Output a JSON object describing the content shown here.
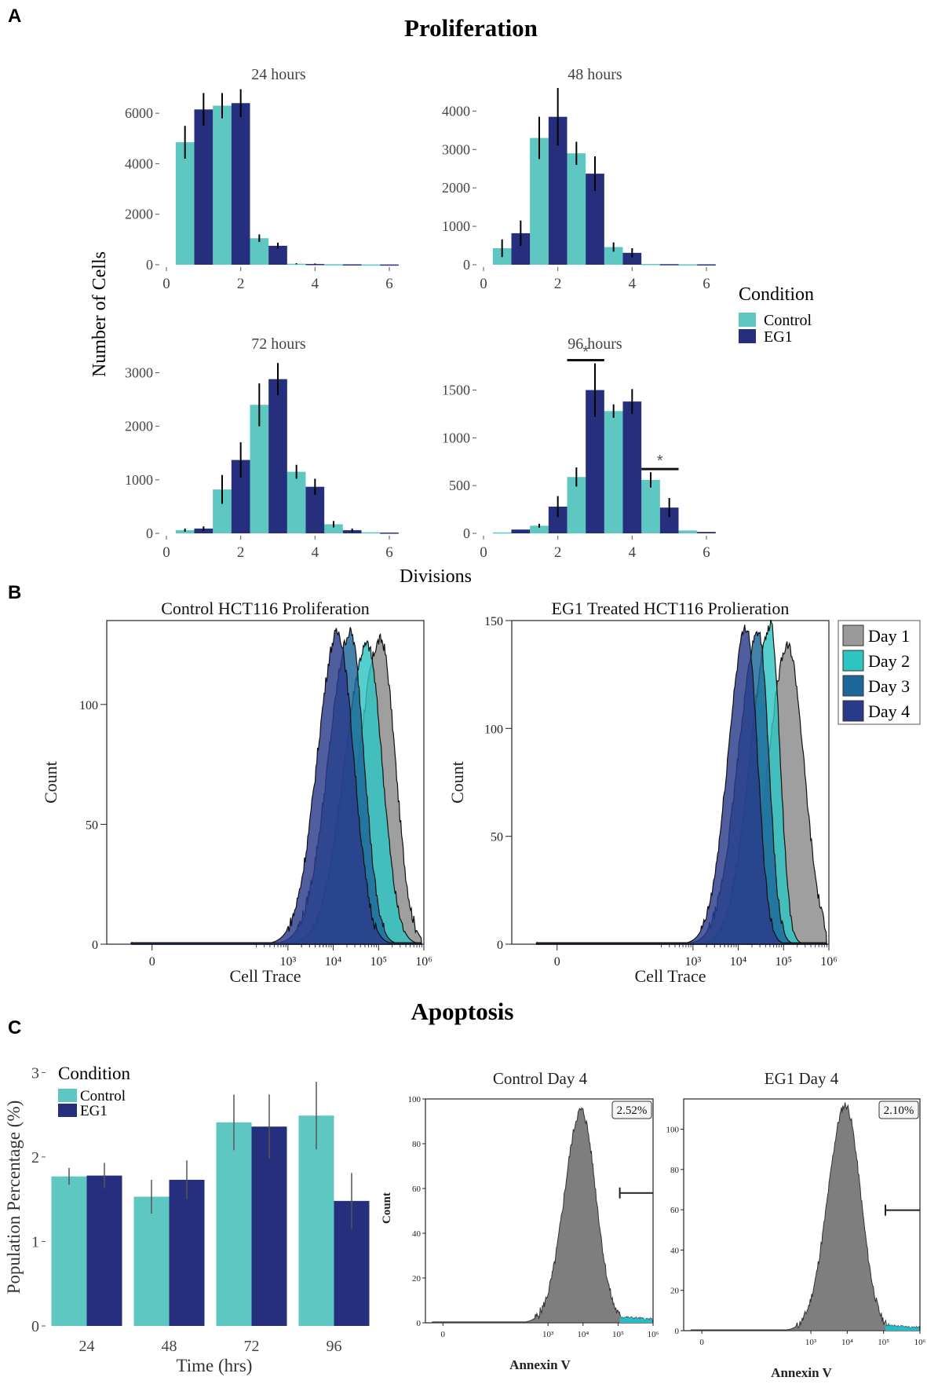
{
  "colors": {
    "control": "#5ec7c1",
    "eg1": "#262f7e",
    "day1": "#9a9a9a",
    "day2": "#2ec4c2",
    "day3": "#1c6699",
    "day4": "#2a3a8a",
    "annexin_fill": "#7e7e7e",
    "annexin_pos": "#27bcc7"
  },
  "panel_letters": [
    "A",
    "B",
    "C"
  ],
  "section_titles": {
    "proliferation": "Proliferation",
    "apoptosis": "Apoptosis"
  },
  "panelA": {
    "shared_ylabel": "Number of Cells",
    "shared_xlabel": "Divisions",
    "legend_title": "Condition",
    "legend_items": [
      "Control",
      "EG1"
    ],
    "significance_marker": "*"
  },
  "panelB": {
    "legend_items": [
      "Day 1",
      "Day 2",
      "Day 3",
      "Day 4"
    ]
  },
  "panelC": {
    "legend_title": "Condition",
    "legend_items": [
      "Control",
      "EG1"
    ]
  },
  "chart_data": [
    {
      "id": "a24",
      "type": "bar",
      "title": "24 hours",
      "x": [
        0,
        1,
        2,
        3,
        4,
        5,
        6
      ],
      "xticks": [
        "0",
        "2",
        "4",
        "6"
      ],
      "ylim": [
        0,
        7000
      ],
      "yticks": [
        0,
        2000,
        4000,
        6000
      ],
      "series": [
        {
          "name": "Control",
          "x": [
            0.5,
            1.5,
            2.5,
            3.5,
            4.5,
            5.5
          ],
          "values": [
            4850,
            6300,
            1050,
            40,
            20,
            10
          ],
          "err": [
            650,
            500,
            150,
            20,
            15,
            10
          ]
        },
        {
          "name": "EG1",
          "x": [
            1.0,
            2.0,
            3.0,
            4.0,
            5.0,
            6.0
          ],
          "values": [
            6150,
            6400,
            750,
            30,
            15,
            10
          ],
          "err": [
            650,
            550,
            120,
            20,
            15,
            10
          ]
        }
      ]
    },
    {
      "id": "a48",
      "type": "bar",
      "title": "48 hours",
      "x": [
        0,
        1,
        2,
        3,
        4,
        5,
        6
      ],
      "xticks": [
        "0",
        "2",
        "4",
        "6"
      ],
      "ylim": [
        0,
        4600
      ],
      "yticks": [
        0,
        1000,
        2000,
        3000,
        4000
      ],
      "series": [
        {
          "name": "Control",
          "x": [
            0.5,
            1.5,
            2.5,
            3.5,
            4.5,
            5.5
          ],
          "values": [
            430,
            3300,
            2900,
            460,
            20,
            10
          ],
          "err": [
            230,
            550,
            300,
            120,
            15,
            10
          ]
        },
        {
          "name": "EG1",
          "x": [
            1.0,
            2.0,
            3.0,
            4.0,
            5.0,
            6.0
          ],
          "values": [
            820,
            3850,
            2370,
            310,
            15,
            10
          ],
          "err": [
            330,
            750,
            450,
            120,
            15,
            10
          ]
        }
      ]
    },
    {
      "id": "a72",
      "type": "bar",
      "title": "72 hours",
      "x": [
        0,
        1,
        2,
        3,
        4,
        5,
        6
      ],
      "xticks": [
        "0",
        "2",
        "4",
        "6"
      ],
      "ylim": [
        0,
        3300
      ],
      "yticks": [
        0,
        1000,
        2000,
        3000
      ],
      "series": [
        {
          "name": "Control",
          "x": [
            0.5,
            1.5,
            2.5,
            3.5,
            4.5,
            5.5
          ],
          "values": [
            60,
            820,
            2400,
            1150,
            170,
            20
          ],
          "err": [
            30,
            270,
            400,
            130,
            60,
            15
          ]
        },
        {
          "name": "EG1",
          "x": [
            1.0,
            2.0,
            3.0,
            4.0,
            5.0,
            6.0
          ],
          "values": [
            90,
            1370,
            2880,
            870,
            60,
            15
          ],
          "err": [
            40,
            330,
            300,
            150,
            30,
            10
          ]
        }
      ]
    },
    {
      "id": "a96",
      "type": "bar",
      "title": "96 hours",
      "x": [
        0,
        1,
        2,
        3,
        4,
        5,
        6
      ],
      "xticks": [
        "0",
        "2",
        "4",
        "6"
      ],
      "ylim": [
        0,
        1850
      ],
      "yticks": [
        0,
        500,
        1000,
        1500
      ],
      "series": [
        {
          "name": "Control",
          "x": [
            0.5,
            1.5,
            2.5,
            3.5,
            4.5,
            5.5
          ],
          "values": [
            10,
            80,
            590,
            1280,
            560,
            30
          ],
          "err": [
            8,
            20,
            100,
            70,
            80,
            15
          ]
        },
        {
          "name": "EG1",
          "x": [
            1.0,
            2.0,
            3.0,
            4.0,
            5.0,
            6.0
          ],
          "values": [
            40,
            280,
            1500,
            1380,
            270,
            15
          ],
          "err": [
            15,
            110,
            280,
            130,
            100,
            10
          ]
        }
      ],
      "significance": [
        {
          "x": [
            2.5,
            3.0
          ]
        },
        {
          "x": [
            4.5,
            5.0
          ]
        }
      ]
    },
    {
      "id": "b_control",
      "type": "area",
      "title": "Control HCT116 Proliferation",
      "xlabel": "Cell Trace",
      "ylabel": "Count",
      "xscale": "log",
      "xlim": [
        -1,
        6
      ],
      "ylim": [
        0,
        135
      ],
      "yticks": [
        0,
        50,
        100
      ],
      "xticks": [
        {
          "value": 0,
          "label": "0"
        },
        {
          "value": 3,
          "label": "10³"
        },
        {
          "value": 4,
          "label": "10⁴"
        },
        {
          "value": 5,
          "label": "10⁵"
        },
        {
          "value": 6,
          "label": "10⁶"
        }
      ],
      "series": [
        {
          "name": "Day 1",
          "peak_log10": 5.05,
          "sigma_left": 0.5,
          "sigma_right": 0.32,
          "peak_count": 127
        },
        {
          "name": "Day 2",
          "peak_log10": 4.75,
          "sigma_left": 0.5,
          "sigma_right": 0.33,
          "peak_count": 125
        },
        {
          "name": "Day 3",
          "peak_log10": 4.38,
          "sigma_left": 0.48,
          "sigma_right": 0.3,
          "peak_count": 130
        },
        {
          "name": "Day 4",
          "peak_log10": 4.1,
          "sigma_left": 0.45,
          "sigma_right": 0.35,
          "peak_count": 130
        }
      ]
    },
    {
      "id": "b_eg1",
      "type": "area",
      "title": "EG1 Treated HCT116 Prolieration",
      "xlabel": "Cell Trace",
      "ylabel": "Count",
      "xscale": "log",
      "xlim": [
        -1,
        6
      ],
      "ylim": [
        0,
        150
      ],
      "yticks": [
        0,
        50,
        100,
        150
      ],
      "xticks": [
        {
          "value": 0,
          "label": "0"
        },
        {
          "value": 3,
          "label": "10³"
        },
        {
          "value": 4,
          "label": "10⁴"
        },
        {
          "value": 5,
          "label": "10⁵"
        },
        {
          "value": 6,
          "label": "10⁶"
        }
      ],
      "series": [
        {
          "name": "Day 1",
          "peak_log10": 5.1,
          "sigma_left": 0.45,
          "sigma_right": 0.35,
          "peak_count": 138
        },
        {
          "name": "Day 2",
          "peak_log10": 4.72,
          "sigma_left": 0.45,
          "sigma_right": 0.2,
          "peak_count": 148
        },
        {
          "name": "Day 3",
          "peak_log10": 4.45,
          "sigma_left": 0.45,
          "sigma_right": 0.22,
          "peak_count": 145
        },
        {
          "name": "Day 4",
          "peak_log10": 4.18,
          "sigma_left": 0.4,
          "sigma_right": 0.24,
          "peak_count": 147
        }
      ]
    },
    {
      "id": "c_bar",
      "type": "bar",
      "xlabel": "Time (hrs)",
      "ylabel": "Population Percentage (%)",
      "categories": [
        "24",
        "48",
        "72",
        "96"
      ],
      "ylim": [
        0,
        3.05
      ],
      "yticks": [
        0,
        1,
        2,
        3
      ],
      "series": [
        {
          "name": "Control",
          "values": [
            1.77,
            1.53,
            2.41,
            2.49
          ],
          "err": [
            0.1,
            0.2,
            0.33,
            0.4
          ]
        },
        {
          "name": "EG1",
          "values": [
            1.78,
            1.73,
            2.36,
            1.48
          ],
          "err": [
            0.15,
            0.23,
            0.38,
            0.33
          ]
        }
      ]
    },
    {
      "id": "c_ctrl",
      "type": "area",
      "title": "Control Day 4",
      "xlabel": "Annexin V",
      "ylabel": "Count",
      "xscale": "log",
      "xlim": [
        -0.5,
        6
      ],
      "ylim": [
        0,
        100
      ],
      "yticks": [
        0,
        20,
        40,
        60,
        80,
        100
      ],
      "xticks": [
        {
          "value": 0,
          "label": "0"
        },
        {
          "value": 3,
          "label": "10³"
        },
        {
          "value": 4,
          "label": "10⁴"
        },
        {
          "value": 5,
          "label": "10⁵"
        },
        {
          "value": 6,
          "label": "10⁶"
        }
      ],
      "peak_log10": 3.95,
      "peak_count": 95,
      "gate_start_log10": 5.05,
      "gate_label": "2.52%"
    },
    {
      "id": "c_eg1",
      "type": "area",
      "title": "EG1 Day 4",
      "xlabel": "Annexin V",
      "ylabel": "",
      "xscale": "log",
      "xlim": [
        -0.5,
        6
      ],
      "ylim": [
        0,
        115
      ],
      "yticks": [
        0,
        20,
        40,
        60,
        80,
        100
      ],
      "xticks": [
        {
          "value": 0,
          "label": "0"
        },
        {
          "value": 3,
          "label": "10³"
        },
        {
          "value": 4,
          "label": "10⁴"
        },
        {
          "value": 5,
          "label": "10⁵"
        },
        {
          "value": 6,
          "label": "10⁶"
        }
      ],
      "peak_log10": 3.95,
      "peak_count": 112,
      "gate_start_log10": 5.05,
      "gate_label": "2.10%"
    }
  ]
}
